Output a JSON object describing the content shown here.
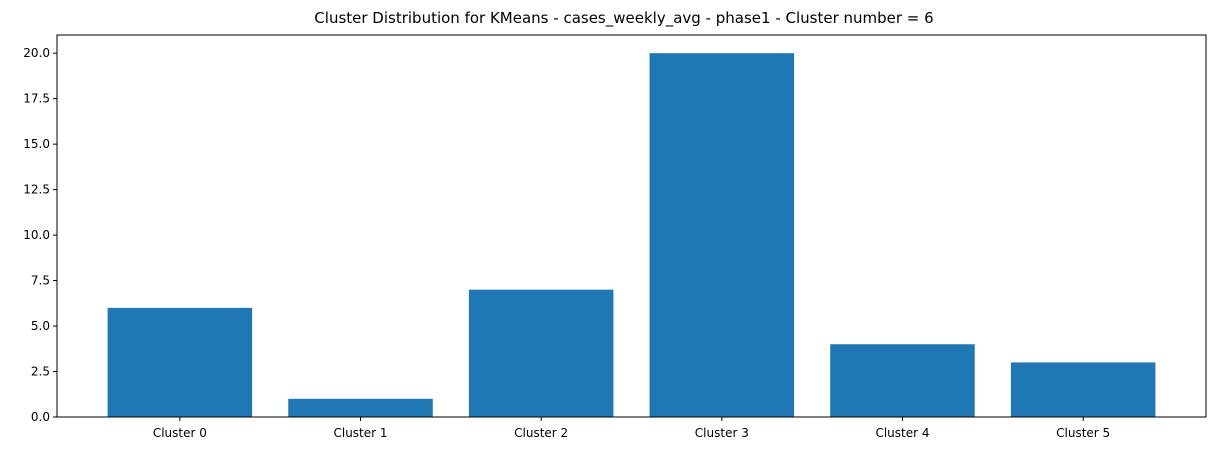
{
  "chart_data": {
    "type": "bar",
    "title": "Cluster Distribution for KMeans - cases_weekly_avg - phase1 - Cluster number = 6",
    "categories": [
      "Cluster 0",
      "Cluster 1",
      "Cluster 2",
      "Cluster 3",
      "Cluster 4",
      "Cluster 5"
    ],
    "values": [
      6,
      1,
      7,
      20,
      4,
      3
    ],
    "xlabel": "",
    "ylabel": "",
    "ylim": [
      0,
      21
    ],
    "yticks": [
      0.0,
      2.5,
      5.0,
      7.5,
      10.0,
      12.5,
      15.0,
      17.5,
      20.0
    ],
    "ytick_labels": [
      "0.0",
      "2.5",
      "5.0",
      "7.5",
      "10.0",
      "12.5",
      "15.0",
      "17.5",
      "20.0"
    ],
    "bar_color": "#1f77b4",
    "grid": false,
    "legend": "none"
  }
}
